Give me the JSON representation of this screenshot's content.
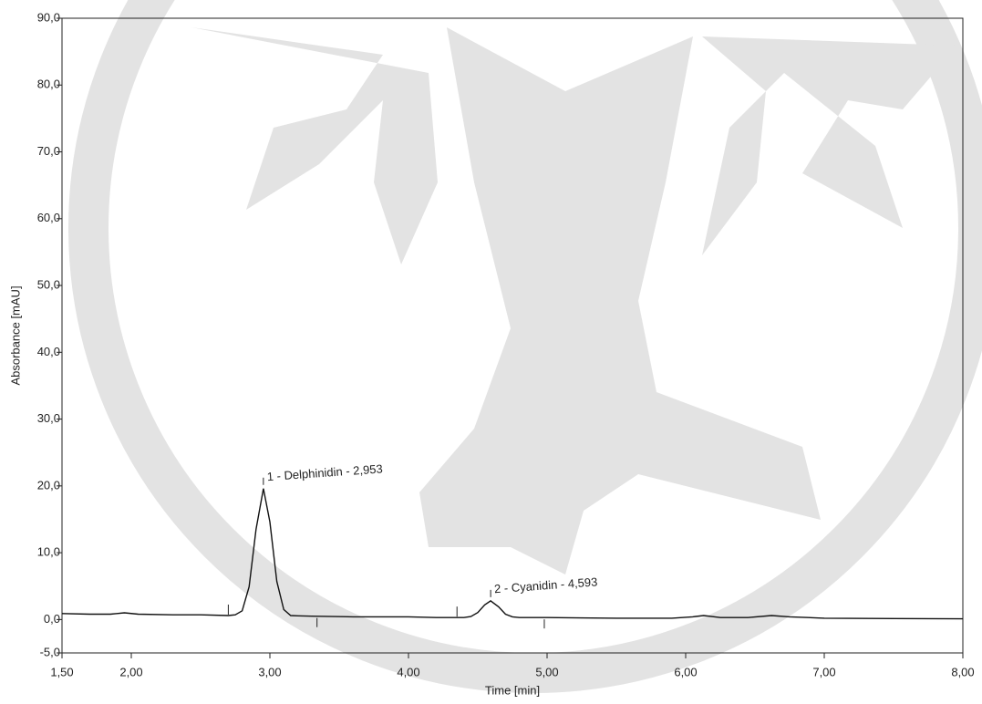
{
  "chart_data": {
    "type": "line",
    "x_label": "Time [min]",
    "y_label": "Absorbance [mAU]",
    "x": [
      1.5,
      1.7,
      1.85,
      1.95,
      2.05,
      2.3,
      2.5,
      2.7,
      2.75,
      2.8,
      2.85,
      2.9,
      2.953,
      3.0,
      3.05,
      3.1,
      3.15,
      3.2,
      3.3,
      3.6,
      4.0,
      4.2,
      4.4,
      4.45,
      4.5,
      4.55,
      4.593,
      4.65,
      4.7,
      4.75,
      4.8,
      5.0,
      5.5,
      5.9,
      6.05,
      6.13,
      6.25,
      6.45,
      6.62,
      6.75,
      7.0,
      7.5,
      8.0
    ],
    "values": [
      0.9,
      0.8,
      0.8,
      1.0,
      0.8,
      0.7,
      0.7,
      0.6,
      0.7,
      1.3,
      4.9,
      13.5,
      19.6,
      14.6,
      5.7,
      1.5,
      0.6,
      0.55,
      0.5,
      0.4,
      0.4,
      0.3,
      0.3,
      0.45,
      1.05,
      2.2,
      2.8,
      1.9,
      0.8,
      0.4,
      0.3,
      0.3,
      0.2,
      0.2,
      0.4,
      0.6,
      0.3,
      0.3,
      0.6,
      0.4,
      0.2,
      0.15,
      0.1
    ],
    "color": "#111111",
    "xlim": [
      1.5,
      8.0
    ],
    "ylim": [
      -5,
      90
    ],
    "xticks": [
      {
        "value": 1.5,
        "label": "1,50"
      },
      {
        "value": 2,
        "label": "2,00"
      },
      {
        "value": 3,
        "label": "3,00"
      },
      {
        "value": 4,
        "label": "4,00"
      },
      {
        "value": 5,
        "label": "5,00"
      },
      {
        "value": 6,
        "label": "6,00"
      },
      {
        "value": 7,
        "label": "7,00"
      },
      {
        "value": 8,
        "label": "8,00"
      }
    ],
    "yticks": [
      {
        "value": -5,
        "label": "-5,0"
      },
      {
        "value": 0,
        "label": "0,0"
      },
      {
        "value": 10,
        "label": "10,0"
      },
      {
        "value": 20,
        "label": "20,0"
      },
      {
        "value": 30,
        "label": "30,0"
      },
      {
        "value": 40,
        "label": "40,0"
      },
      {
        "value": 50,
        "label": "50,0"
      },
      {
        "value": 60,
        "label": "60,0"
      },
      {
        "value": 70,
        "label": "70,0"
      },
      {
        "value": 80,
        "label": "80,0"
      },
      {
        "value": 90,
        "label": "90,0"
      }
    ],
    "peaks": [
      {
        "label": "1 - Delphinidin - 2,953",
        "time": 2.953
      },
      {
        "label": "2 - Cyanidin - 4,593",
        "time": 4.593
      }
    ],
    "integration_ticks": [
      2.7,
      3.34,
      4.35,
      4.98
    ]
  }
}
